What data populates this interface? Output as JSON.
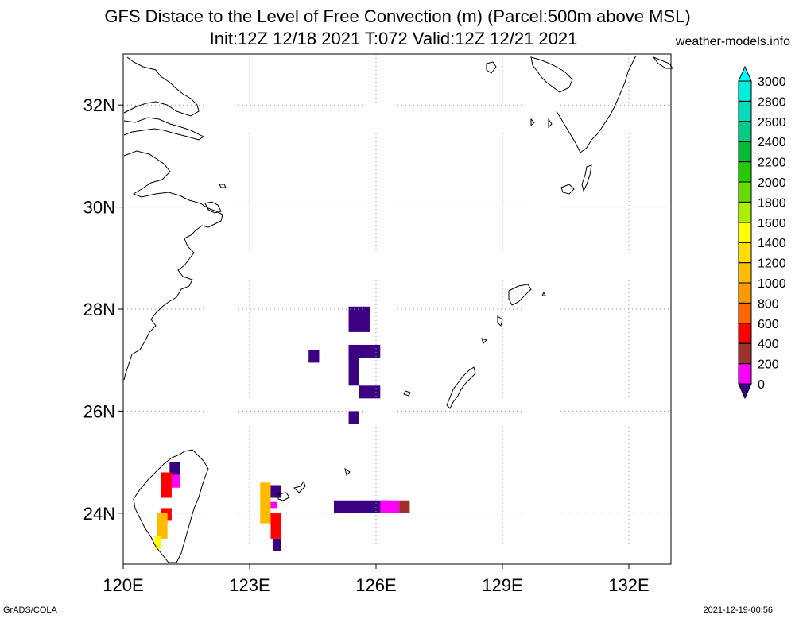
{
  "title_line1": "GFS Distace to the Level of Free Convection (m) (Parcel:500m above MSL)",
  "title_line2": "Init:12Z 12/18 2021 T:072 Valid:12Z 12/21 2021",
  "site": "weather-models.info",
  "footer_left": "GrADS/COLA",
  "footer_right": "2021-12-19-00:56",
  "map": {
    "lon_range": [
      120,
      133
    ],
    "lat_range": [
      23,
      33
    ],
    "lon_ticks": [
      {
        "value": 120,
        "label": "120E"
      },
      {
        "value": 123,
        "label": "123E"
      },
      {
        "value": 126,
        "label": "126E"
      },
      {
        "value": 129,
        "label": "129E"
      },
      {
        "value": 132,
        "label": "132E"
      }
    ],
    "lat_ticks": [
      {
        "value": 24,
        "label": "24N"
      },
      {
        "value": 26,
        "label": "26N"
      },
      {
        "value": 28,
        "label": "28N"
      },
      {
        "value": 30,
        "label": "30N"
      },
      {
        "value": 32,
        "label": "32N"
      }
    ],
    "grid": true
  },
  "colorbar": {
    "labels": [
      "0",
      "200",
      "400",
      "600",
      "800",
      "1000",
      "1200",
      "1400",
      "1600",
      "1800",
      "2000",
      "2200",
      "2400",
      "2600",
      "2800",
      "3000"
    ],
    "colors": [
      "#3c0082",
      "#ff00ff",
      "#a0302c",
      "#ff0000",
      "#ff6600",
      "#ff9900",
      "#ffbb00",
      "#ffdd00",
      "#ffff00",
      "#aaee00",
      "#66dd00",
      "#22cc00",
      "#00bb33",
      "#00cc88",
      "#00ddbb",
      "#00eedd",
      "#00ffff"
    ]
  },
  "shading": [
    {
      "lon": 125.35,
      "lat": 27.55,
      "w": 0.5,
      "h": 0.5,
      "color": "#3c0082"
    },
    {
      "lon": 125.35,
      "lat": 27.05,
      "w": 0.75,
      "h": 0.25,
      "color": "#3c0082"
    },
    {
      "lon": 124.4,
      "lat": 26.95,
      "w": 0.25,
      "h": 0.25,
      "color": "#3c0082"
    },
    {
      "lon": 125.35,
      "lat": 26.5,
      "w": 0.25,
      "h": 0.75,
      "color": "#3c0082"
    },
    {
      "lon": 125.35,
      "lat": 25.75,
      "w": 0.25,
      "h": 0.25,
      "color": "#3c0082"
    },
    {
      "lon": 125.6,
      "lat": 26.25,
      "w": 0.5,
      "h": 0.25,
      "color": "#3c0082"
    },
    {
      "lon": 125.0,
      "lat": 24.0,
      "w": 1.3,
      "h": 0.25,
      "color": "#3c0082"
    },
    {
      "lon": 126.1,
      "lat": 24.0,
      "w": 0.45,
      "h": 0.25,
      "color": "#ff00ff"
    },
    {
      "lon": 126.55,
      "lat": 24.0,
      "w": 0.25,
      "h": 0.25,
      "color": "#a0302c"
    },
    {
      "lon": 123.5,
      "lat": 24.3,
      "w": 0.25,
      "h": 0.25,
      "color": "#3c0082"
    },
    {
      "lon": 123.5,
      "lat": 24.1,
      "w": 0.15,
      "h": 0.12,
      "color": "#ff00ff"
    },
    {
      "lon": 121.1,
      "lat": 24.75,
      "w": 0.25,
      "h": 0.25,
      "color": "#3c0082"
    },
    {
      "lon": 121.15,
      "lat": 24.5,
      "w": 0.2,
      "h": 0.25,
      "color": "#ff00ff"
    },
    {
      "lon": 120.9,
      "lat": 24.3,
      "w": 0.25,
      "h": 0.5,
      "color": "#ff0000"
    },
    {
      "lon": 120.9,
      "lat": 23.85,
      "w": 0.25,
      "h": 0.25,
      "color": "#ff0000"
    },
    {
      "lon": 120.8,
      "lat": 23.5,
      "w": 0.25,
      "h": 0.5,
      "color": "#ffbb00"
    },
    {
      "lon": 120.75,
      "lat": 23.3,
      "w": 0.15,
      "h": 0.25,
      "color": "#ffff00"
    },
    {
      "lon": 123.25,
      "lat": 23.8,
      "w": 0.25,
      "h": 0.8,
      "color": "#ffbb00"
    },
    {
      "lon": 123.5,
      "lat": 23.5,
      "w": 0.25,
      "h": 0.5,
      "color": "#ff0000"
    },
    {
      "lon": 123.55,
      "lat": 23.25,
      "w": 0.2,
      "h": 0.25,
      "color": "#3c0082"
    }
  ]
}
